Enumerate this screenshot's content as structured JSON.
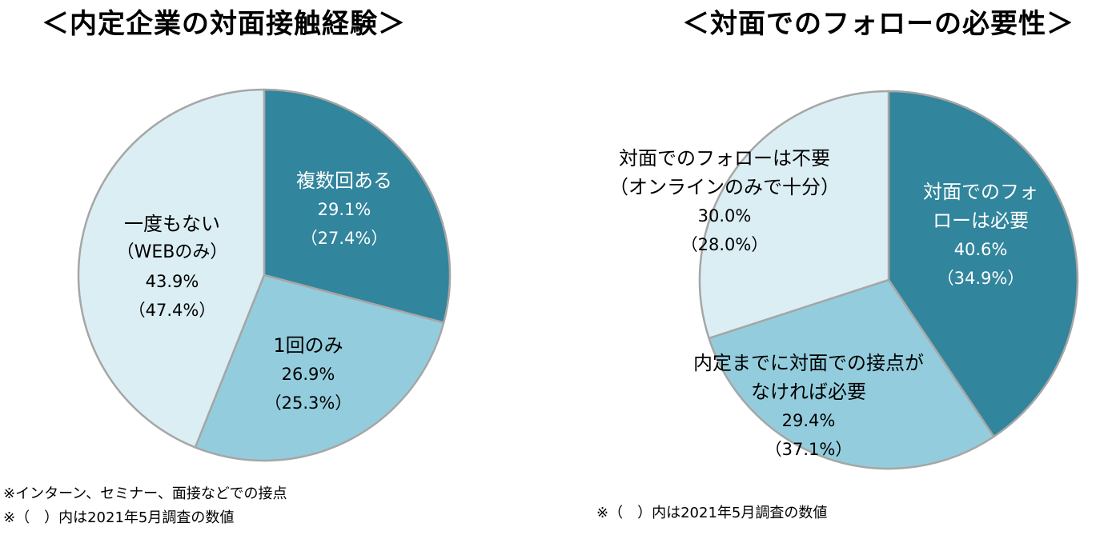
{
  "chart_data": [
    {
      "type": "pie",
      "title": "＜内定企業の対面接触経験＞",
      "slices": [
        {
          "label_lines": [
            "複数回ある"
          ],
          "value": 29.1,
          "value_text": "29.1%",
          "prev_text": "（27.4%）",
          "color": "#31859c"
        },
        {
          "label_lines": [
            "1回のみ"
          ],
          "value": 26.9,
          "value_text": "26.9%",
          "prev_text": "（25.3%）",
          "color": "#93cddd"
        },
        {
          "label_lines": [
            "一度もない",
            "（WEBのみ）"
          ],
          "value": 43.9,
          "value_text": "43.9%",
          "prev_text": "（47.4%）",
          "color": "#dbeef3"
        }
      ],
      "notes": [
        "※インターン、セミナー、面接などでの接点",
        "※（　）内は2021年5月調査の数値"
      ]
    },
    {
      "type": "pie",
      "title": "＜対面でのフォローの必要性＞",
      "slices": [
        {
          "label_lines": [
            "対面でのフォ",
            "ローは必要"
          ],
          "value": 40.6,
          "value_text": "40.6%",
          "prev_text": "（34.9%）",
          "color": "#31859c"
        },
        {
          "label_lines": [
            "内定までに対面での接点が",
            "なければ必要"
          ],
          "value": 29.4,
          "value_text": "29.4%",
          "prev_text": "（37.1%）",
          "color": "#93cddd"
        },
        {
          "label_lines": [
            "対面でのフォローは不要",
            "（オンラインのみで十分）"
          ],
          "value": 30.0,
          "value_text": "30.0%",
          "prev_text": "（28.0%）",
          "color": "#dbeef3"
        }
      ],
      "notes": [
        "※（　）内は2021年5月調査の数値"
      ]
    }
  ],
  "style": {
    "stroke": "#a6a6a6",
    "dark_text": "#ffffff",
    "light_text": "#000000"
  }
}
